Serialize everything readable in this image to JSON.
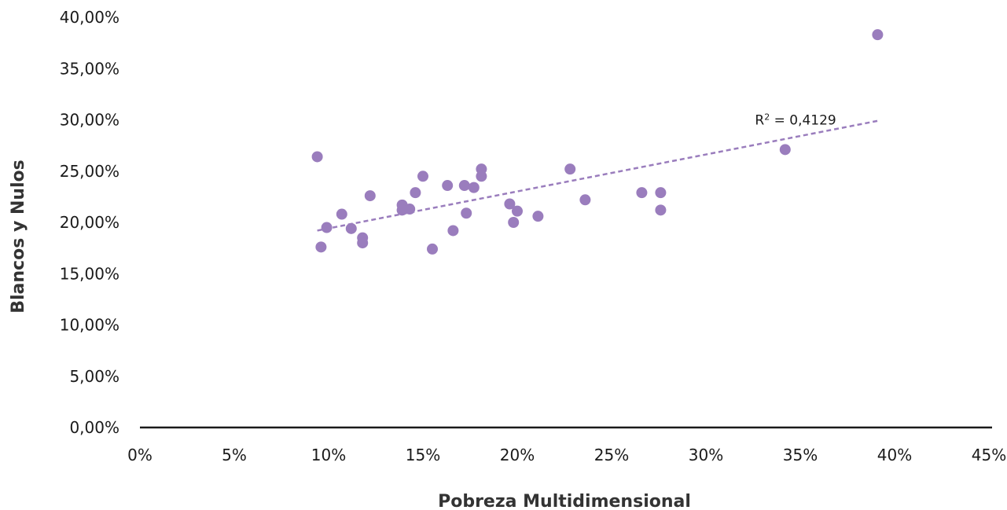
{
  "chart_data": {
    "type": "scatter",
    "title": "",
    "xlabel": "Pobreza Multidimensional",
    "ylabel": "Blancos y Nulos",
    "xlim": [
      0,
      45
    ],
    "ylim": [
      0,
      40
    ],
    "x_ticks": [
      "0%",
      "5%",
      "10%",
      "15%",
      "20%",
      "25%",
      "30%",
      "35%",
      "40%",
      "45%"
    ],
    "y_ticks": [
      "0,00%",
      "5,00%",
      "10,00%",
      "15,00%",
      "20,00%",
      "25,00%",
      "30,00%",
      "35,00%",
      "40,00%"
    ],
    "grid": false,
    "legend": "none",
    "marker_color": "#9a7dbd",
    "trendline_color": "#9a7dbd",
    "points": [
      {
        "x": 9.4,
        "y": 26.4
      },
      {
        "x": 9.6,
        "y": 17.6
      },
      {
        "x": 9.9,
        "y": 19.5
      },
      {
        "x": 10.7,
        "y": 20.8
      },
      {
        "x": 11.2,
        "y": 19.4
      },
      {
        "x": 11.8,
        "y": 18.5
      },
      {
        "x": 11.8,
        "y": 18.0
      },
      {
        "x": 12.2,
        "y": 22.6
      },
      {
        "x": 13.9,
        "y": 21.7
      },
      {
        "x": 13.9,
        "y": 21.2
      },
      {
        "x": 14.3,
        "y": 21.3
      },
      {
        "x": 14.6,
        "y": 22.9
      },
      {
        "x": 15.0,
        "y": 24.5
      },
      {
        "x": 15.5,
        "y": 17.4
      },
      {
        "x": 16.3,
        "y": 23.6
      },
      {
        "x": 16.6,
        "y": 19.2
      },
      {
        "x": 17.2,
        "y": 23.6
      },
      {
        "x": 17.3,
        "y": 20.9
      },
      {
        "x": 17.7,
        "y": 23.4
      },
      {
        "x": 18.1,
        "y": 25.2
      },
      {
        "x": 18.1,
        "y": 24.5
      },
      {
        "x": 19.6,
        "y": 21.8
      },
      {
        "x": 19.8,
        "y": 20.0
      },
      {
        "x": 20.0,
        "y": 21.1
      },
      {
        "x": 21.1,
        "y": 20.6
      },
      {
        "x": 22.8,
        "y": 25.2
      },
      {
        "x": 23.6,
        "y": 22.2
      },
      {
        "x": 26.6,
        "y": 22.9
      },
      {
        "x": 27.6,
        "y": 22.9
      },
      {
        "x": 27.6,
        "y": 21.2
      },
      {
        "x": 34.2,
        "y": 27.1
      },
      {
        "x": 39.1,
        "y": 38.3
      }
    ],
    "trendline": {
      "x": [
        9.4,
        39.1
      ],
      "y": [
        19.2,
        29.9
      ]
    },
    "annotation": {
      "text_main": "R",
      "text_sup": "2",
      "text_rest": " = 0,4129",
      "x": 32.6,
      "y": 30.0
    }
  }
}
